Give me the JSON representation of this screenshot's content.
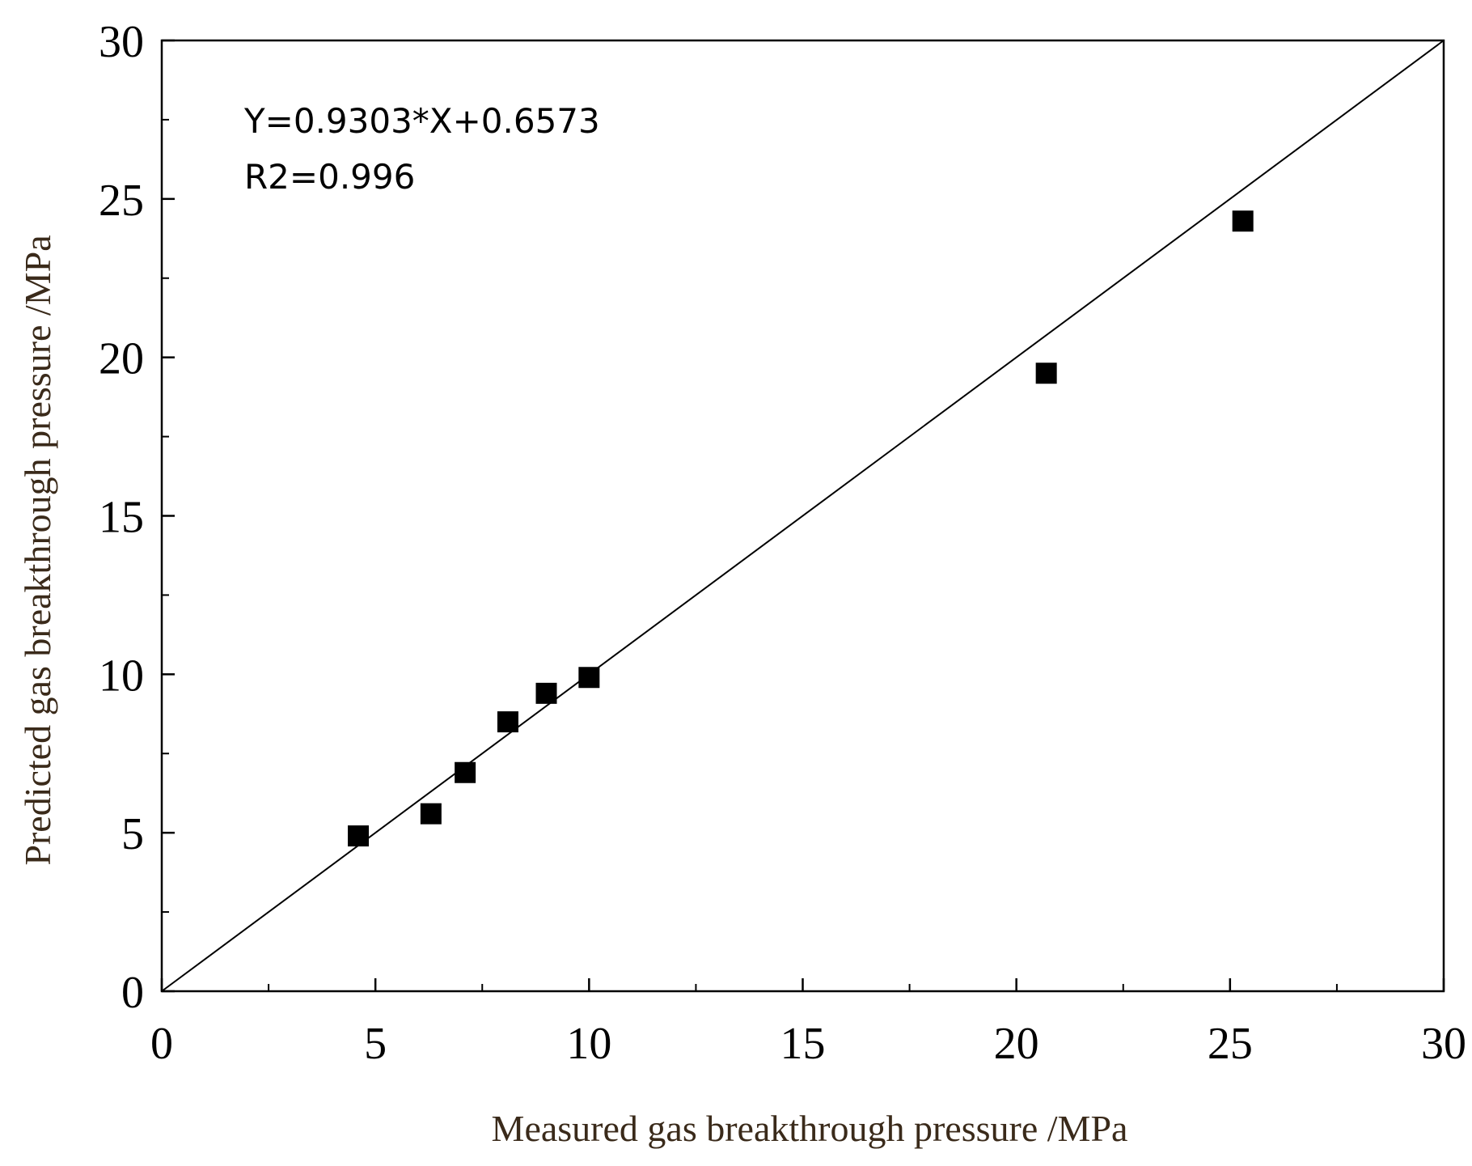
{
  "chart_data": {
    "type": "scatter",
    "xlabel": "Measured gas breakthrough pressure /MPa",
    "ylabel": "Predicted gas breakthrough pressure /MPa",
    "xlim": [
      0,
      30
    ],
    "ylim": [
      0,
      30
    ],
    "x_ticks": [
      "0",
      "5",
      "10",
      "15",
      "20",
      "25",
      "30"
    ],
    "y_ticks": [
      "0",
      "5",
      "10",
      "15",
      "20",
      "25",
      "30"
    ],
    "grid": false,
    "legend": "none",
    "annotations": [
      "Y=0.9303*X+0.6573",
      "R2=0.996"
    ],
    "series": [
      {
        "marker": "square",
        "color": "#000000",
        "points": [
          {
            "x": 4.6,
            "y": 4.9
          },
          {
            "x": 6.3,
            "y": 5.6
          },
          {
            "x": 7.1,
            "y": 6.9
          },
          {
            "x": 8.1,
            "y": 8.5
          },
          {
            "x": 9.0,
            "y": 9.4
          },
          {
            "x": 10.0,
            "y": 9.9
          },
          {
            "x": 20.7,
            "y": 19.5
          },
          {
            "x": 25.3,
            "y": 24.3
          }
        ]
      }
    ],
    "reference_line": {
      "style": "solid",
      "color": "#000000",
      "from": [
        0,
        0
      ],
      "to": [
        30,
        30
      ]
    }
  }
}
